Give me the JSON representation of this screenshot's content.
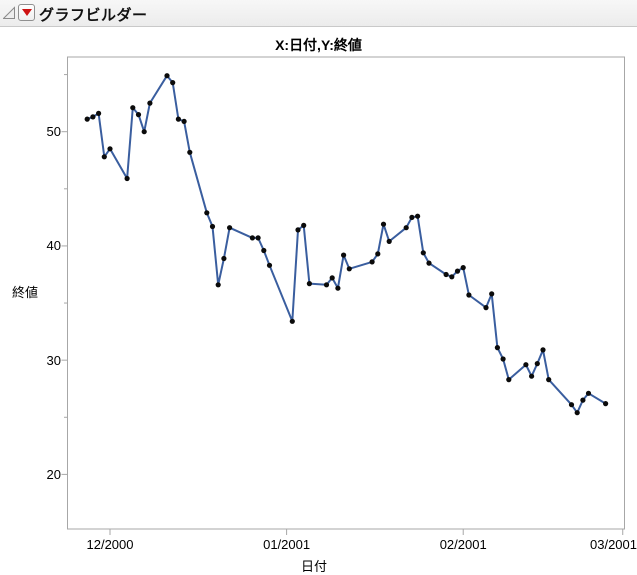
{
  "window": {
    "title": "グラフビルダー"
  },
  "header": {
    "disclosure_icon": "open-disclosure-triangle",
    "menu_icon": "red-triangle-menu"
  },
  "chart": {
    "title": "X:日付,Y:終値",
    "x_axis_title": "日付",
    "y_axis_title": "終値"
  },
  "colors": {
    "line": "#3A5E9F",
    "marker": "#0B0B0B",
    "axis": "#A7A7A7",
    "red_triangle": "#CE1212"
  },
  "chart_data": {
    "type": "line",
    "title": "X:日付,Y:終値",
    "xlabel": "日付",
    "ylabel": "終値",
    "legend": "none",
    "grid": false,
    "markers": "filled-circle",
    "x_axis": {
      "scale": "time-calendar-days",
      "ticks": [
        {
          "label": "12/2000",
          "date": "2000-12-01"
        },
        {
          "label": "01/2001",
          "date": "2001-01-01"
        },
        {
          "label": "02/2001",
          "date": "2001-02-01"
        },
        {
          "label": "03/2001",
          "date": "2001-03-01"
        }
      ],
      "range": [
        "2000-11-23",
        "2001-03-01"
      ]
    },
    "y_axis": {
      "ticks": [
        20,
        30,
        40,
        50
      ],
      "minor_ticks": [
        25,
        35,
        45,
        55
      ],
      "range": [
        15.2,
        56.4
      ]
    },
    "series_name": "終値",
    "points_format": [
      "date",
      "close"
    ],
    "points": [
      [
        "2000-11-27",
        51.1
      ],
      [
        "2000-11-28",
        51.3
      ],
      [
        "2000-11-29",
        51.6
      ],
      [
        "2000-11-30",
        47.8
      ],
      [
        "2000-12-01",
        48.5
      ],
      [
        "2000-12-04",
        45.9
      ],
      [
        "2000-12-05",
        52.1
      ],
      [
        "2000-12-06",
        51.5
      ],
      [
        "2000-12-07",
        50.0
      ],
      [
        "2000-12-08",
        52.5
      ],
      [
        "2000-12-11",
        54.9
      ],
      [
        "2000-12-12",
        54.3
      ],
      [
        "2000-12-13",
        51.1
      ],
      [
        "2000-12-14",
        50.9
      ],
      [
        "2000-12-15",
        48.2
      ],
      [
        "2000-12-18",
        42.9
      ],
      [
        "2000-12-19",
        41.7
      ],
      [
        "2000-12-20",
        36.6
      ],
      [
        "2000-12-21",
        38.9
      ],
      [
        "2000-12-22",
        41.6
      ],
      [
        "2000-12-26",
        40.7
      ],
      [
        "2000-12-27",
        40.7
      ],
      [
        "2000-12-28",
        39.6
      ],
      [
        "2000-12-29",
        38.3
      ],
      [
        "2001-01-02",
        33.4
      ],
      [
        "2001-01-03",
        41.4
      ],
      [
        "2001-01-04",
        41.8
      ],
      [
        "2001-01-05",
        36.7
      ],
      [
        "2001-01-08",
        36.6
      ],
      [
        "2001-01-09",
        37.2
      ],
      [
        "2001-01-10",
        36.3
      ],
      [
        "2001-01-11",
        39.2
      ],
      [
        "2001-01-12",
        38.0
      ],
      [
        "2001-01-16",
        38.6
      ],
      [
        "2001-01-17",
        39.3
      ],
      [
        "2001-01-18",
        41.9
      ],
      [
        "2001-01-19",
        40.4
      ],
      [
        "2001-01-22",
        41.6
      ],
      [
        "2001-01-23",
        42.5
      ],
      [
        "2001-01-24",
        42.6
      ],
      [
        "2001-01-25",
        39.4
      ],
      [
        "2001-01-26",
        38.5
      ],
      [
        "2001-01-29",
        37.5
      ],
      [
        "2001-01-30",
        37.3
      ],
      [
        "2001-01-31",
        37.8
      ],
      [
        "2001-02-01",
        38.1
      ],
      [
        "2001-02-02",
        35.7
      ],
      [
        "2001-02-05",
        34.6
      ],
      [
        "2001-02-06",
        35.8
      ],
      [
        "2001-02-07",
        31.1
      ],
      [
        "2001-02-08",
        30.1
      ],
      [
        "2001-02-09",
        28.3
      ],
      [
        "2001-02-12",
        29.6
      ],
      [
        "2001-02-13",
        28.6
      ],
      [
        "2001-02-14",
        29.7
      ],
      [
        "2001-02-15",
        30.9
      ],
      [
        "2001-02-16",
        28.3
      ],
      [
        "2001-02-20",
        26.1
      ],
      [
        "2001-02-21",
        25.4
      ],
      [
        "2001-02-22",
        26.5
      ],
      [
        "2001-02-23",
        27.1
      ],
      [
        "2001-02-26",
        26.2
      ]
    ]
  }
}
